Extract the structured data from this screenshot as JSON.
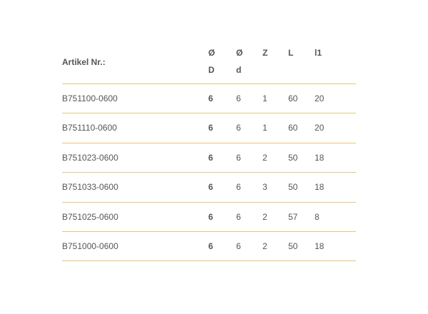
{
  "table": {
    "headers": [
      {
        "top": "",
        "bottom": "Artikel Nr.:"
      },
      {
        "top": "Ø",
        "bottom": "D"
      },
      {
        "top": "Ø",
        "bottom": "d"
      },
      {
        "top": "Z",
        "bottom": ""
      },
      {
        "top": "L",
        "bottom": ""
      },
      {
        "top": "l1",
        "bottom": ""
      }
    ],
    "rows": [
      [
        "B751100-0600",
        "6",
        "6",
        "1",
        "60",
        "20"
      ],
      [
        "B751110-0600",
        "6",
        "6",
        "1",
        "60",
        "20"
      ],
      [
        "B751023-0600",
        "6",
        "6",
        "2",
        "50",
        "18"
      ],
      [
        "B751033-0600",
        "6",
        "6",
        "3",
        "50",
        "18"
      ],
      [
        "B751025-0600",
        "6",
        "6",
        "2",
        "57",
        "8"
      ],
      [
        "B751000-0600",
        "6",
        "6",
        "2",
        "50",
        "18"
      ]
    ],
    "divider_color": "#e6c77a"
  }
}
